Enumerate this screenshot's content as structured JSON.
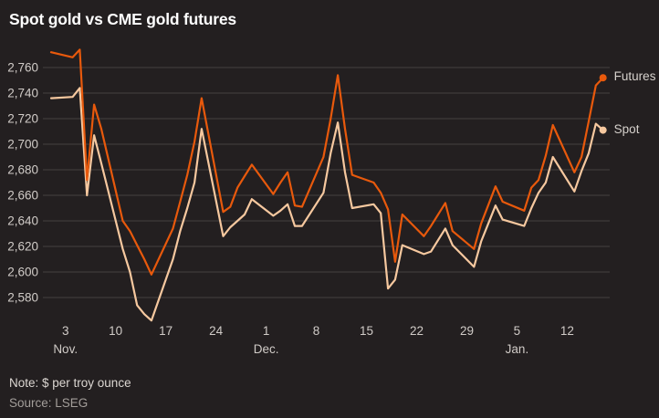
{
  "title": "Spot gold vs CME gold futures",
  "note": "Note: $ per troy ounce",
  "source": "Source: LSEG",
  "legend": {
    "futures": "Futures",
    "spot": "Spot"
  },
  "colors": {
    "background": "#231f20",
    "title_text": "#ffffff",
    "grid_line": "#454041",
    "axis_text": "#d0cbc7",
    "legend_text": "#d6d1cc",
    "note_text": "#dcd7d2",
    "source_text": "#a39e9a",
    "futures_line": "#e8590c",
    "spot_line": "#f6c89f"
  },
  "chart_data": {
    "type": "line",
    "title": "Spot gold vs CME gold futures",
    "unit_note": "$ per troy ounce",
    "source": "LSEG",
    "x_start_date": "2024-11-01",
    "x_end_date": "2025-01-17",
    "ylim": [
      2580,
      2760
    ],
    "grid": true,
    "legend_position": "right-of-line-ends",
    "y_ticks": [
      2760,
      2740,
      2720,
      2700,
      2680,
      2660,
      2640,
      2620,
      2600,
      2580
    ],
    "x_ticks": [
      {
        "label": "3",
        "month": "Nov.",
        "date": "2024-11-03"
      },
      {
        "label": "10",
        "month": "",
        "date": "2024-11-10"
      },
      {
        "label": "17",
        "month": "",
        "date": "2024-11-17"
      },
      {
        "label": "24",
        "month": "",
        "date": "2024-11-24"
      },
      {
        "label": "1",
        "month": "Dec.",
        "date": "2024-12-01"
      },
      {
        "label": "8",
        "month": "",
        "date": "2024-12-08"
      },
      {
        "label": "15",
        "month": "",
        "date": "2024-12-15"
      },
      {
        "label": "22",
        "month": "",
        "date": "2024-12-22"
      },
      {
        "label": "29",
        "month": "",
        "date": "2024-12-29"
      },
      {
        "label": "5",
        "month": "Jan.",
        "date": "2025-01-05"
      },
      {
        "label": "12",
        "month": "",
        "date": "2025-01-12"
      }
    ],
    "series": [
      {
        "name": "Spot",
        "color": "#f6c89f",
        "points": [
          {
            "date": "2024-11-01",
            "value": 2736
          },
          {
            "date": "2024-11-04",
            "value": 2737
          },
          {
            "date": "2024-11-05",
            "value": 2744
          },
          {
            "date": "2024-11-06",
            "value": 2660
          },
          {
            "date": "2024-11-07",
            "value": 2707
          },
          {
            "date": "2024-11-08",
            "value": 2685
          },
          {
            "date": "2024-11-11",
            "value": 2618
          },
          {
            "date": "2024-11-12",
            "value": 2600
          },
          {
            "date": "2024-11-13",
            "value": 2574
          },
          {
            "date": "2024-11-14",
            "value": 2567
          },
          {
            "date": "2024-11-15",
            "value": 2562
          },
          {
            "date": "2024-11-18",
            "value": 2610
          },
          {
            "date": "2024-11-19",
            "value": 2632
          },
          {
            "date": "2024-11-20",
            "value": 2650
          },
          {
            "date": "2024-11-21",
            "value": 2670
          },
          {
            "date": "2024-11-22",
            "value": 2712
          },
          {
            "date": "2024-11-25",
            "value": 2628
          },
          {
            "date": "2024-11-26",
            "value": 2635
          },
          {
            "date": "2024-11-27",
            "value": 2640
          },
          {
            "date": "2024-11-28",
            "value": 2645
          },
          {
            "date": "2024-11-29",
            "value": 2657
          },
          {
            "date": "2024-12-02",
            "value": 2644
          },
          {
            "date": "2024-12-03",
            "value": 2648
          },
          {
            "date": "2024-12-04",
            "value": 2653
          },
          {
            "date": "2024-12-05",
            "value": 2636
          },
          {
            "date": "2024-12-06",
            "value": 2636
          },
          {
            "date": "2024-12-09",
            "value": 2662
          },
          {
            "date": "2024-12-10",
            "value": 2693
          },
          {
            "date": "2024-12-11",
            "value": 2717
          },
          {
            "date": "2024-12-12",
            "value": 2678
          },
          {
            "date": "2024-12-13",
            "value": 2650
          },
          {
            "date": "2024-12-16",
            "value": 2653
          },
          {
            "date": "2024-12-17",
            "value": 2646
          },
          {
            "date": "2024-12-18",
            "value": 2587
          },
          {
            "date": "2024-12-19",
            "value": 2594
          },
          {
            "date": "2024-12-20",
            "value": 2621
          },
          {
            "date": "2024-12-23",
            "value": 2614
          },
          {
            "date": "2024-12-24",
            "value": 2616
          },
          {
            "date": "2024-12-26",
            "value": 2634
          },
          {
            "date": "2024-12-27",
            "value": 2621
          },
          {
            "date": "2024-12-30",
            "value": 2604
          },
          {
            "date": "2024-12-31",
            "value": 2624
          },
          {
            "date": "2025-01-02",
            "value": 2652
          },
          {
            "date": "2025-01-03",
            "value": 2641
          },
          {
            "date": "2025-01-06",
            "value": 2636
          },
          {
            "date": "2025-01-07",
            "value": 2650
          },
          {
            "date": "2025-01-08",
            "value": 2662
          },
          {
            "date": "2025-01-09",
            "value": 2670
          },
          {
            "date": "2025-01-10",
            "value": 2690
          },
          {
            "date": "2025-01-13",
            "value": 2663
          },
          {
            "date": "2025-01-14",
            "value": 2679
          },
          {
            "date": "2025-01-15",
            "value": 2693
          },
          {
            "date": "2025-01-16",
            "value": 2716
          },
          {
            "date": "2025-01-17",
            "value": 2711
          }
        ]
      },
      {
        "name": "Futures",
        "color": "#e8590c",
        "points": [
          {
            "date": "2024-11-01",
            "value": 2772
          },
          {
            "date": "2024-11-04",
            "value": 2768
          },
          {
            "date": "2024-11-05",
            "value": 2774
          },
          {
            "date": "2024-11-06",
            "value": 2672
          },
          {
            "date": "2024-11-07",
            "value": 2731
          },
          {
            "date": "2024-11-08",
            "value": 2712
          },
          {
            "date": "2024-11-11",
            "value": 2640
          },
          {
            "date": "2024-11-12",
            "value": 2632
          },
          {
            "date": "2024-11-13",
            "value": 2621
          },
          {
            "date": "2024-11-14",
            "value": 2610
          },
          {
            "date": "2024-11-15",
            "value": 2598
          },
          {
            "date": "2024-11-18",
            "value": 2634
          },
          {
            "date": "2024-11-19",
            "value": 2655
          },
          {
            "date": "2024-11-20",
            "value": 2676
          },
          {
            "date": "2024-11-21",
            "value": 2702
          },
          {
            "date": "2024-11-22",
            "value": 2736
          },
          {
            "date": "2024-11-25",
            "value": 2647
          },
          {
            "date": "2024-11-26",
            "value": 2651
          },
          {
            "date": "2024-11-27",
            "value": 2666
          },
          {
            "date": "2024-11-28",
            "value": 2675
          },
          {
            "date": "2024-11-29",
            "value": 2684
          },
          {
            "date": "2024-12-02",
            "value": 2661
          },
          {
            "date": "2024-12-03",
            "value": 2670
          },
          {
            "date": "2024-12-04",
            "value": 2678
          },
          {
            "date": "2024-12-05",
            "value": 2652
          },
          {
            "date": "2024-12-06",
            "value": 2651
          },
          {
            "date": "2024-12-09",
            "value": 2690
          },
          {
            "date": "2024-12-10",
            "value": 2720
          },
          {
            "date": "2024-12-11",
            "value": 2754
          },
          {
            "date": "2024-12-12",
            "value": 2712
          },
          {
            "date": "2024-12-13",
            "value": 2676
          },
          {
            "date": "2024-12-16",
            "value": 2670
          },
          {
            "date": "2024-12-17",
            "value": 2662
          },
          {
            "date": "2024-12-18",
            "value": 2649
          },
          {
            "date": "2024-12-19",
            "value": 2608
          },
          {
            "date": "2024-12-20",
            "value": 2645
          },
          {
            "date": "2024-12-23",
            "value": 2628
          },
          {
            "date": "2024-12-24",
            "value": 2636
          },
          {
            "date": "2024-12-26",
            "value": 2654
          },
          {
            "date": "2024-12-27",
            "value": 2632
          },
          {
            "date": "2024-12-30",
            "value": 2618
          },
          {
            "date": "2024-12-31",
            "value": 2638
          },
          {
            "date": "2025-01-02",
            "value": 2667
          },
          {
            "date": "2025-01-03",
            "value": 2655
          },
          {
            "date": "2025-01-06",
            "value": 2648
          },
          {
            "date": "2025-01-07",
            "value": 2666
          },
          {
            "date": "2025-01-08",
            "value": 2672
          },
          {
            "date": "2025-01-09",
            "value": 2691
          },
          {
            "date": "2025-01-10",
            "value": 2715
          },
          {
            "date": "2025-01-13",
            "value": 2678
          },
          {
            "date": "2025-01-14",
            "value": 2690
          },
          {
            "date": "2025-01-15",
            "value": 2718
          },
          {
            "date": "2025-01-16",
            "value": 2746
          },
          {
            "date": "2025-01-17",
            "value": 2752
          }
        ]
      }
    ]
  }
}
